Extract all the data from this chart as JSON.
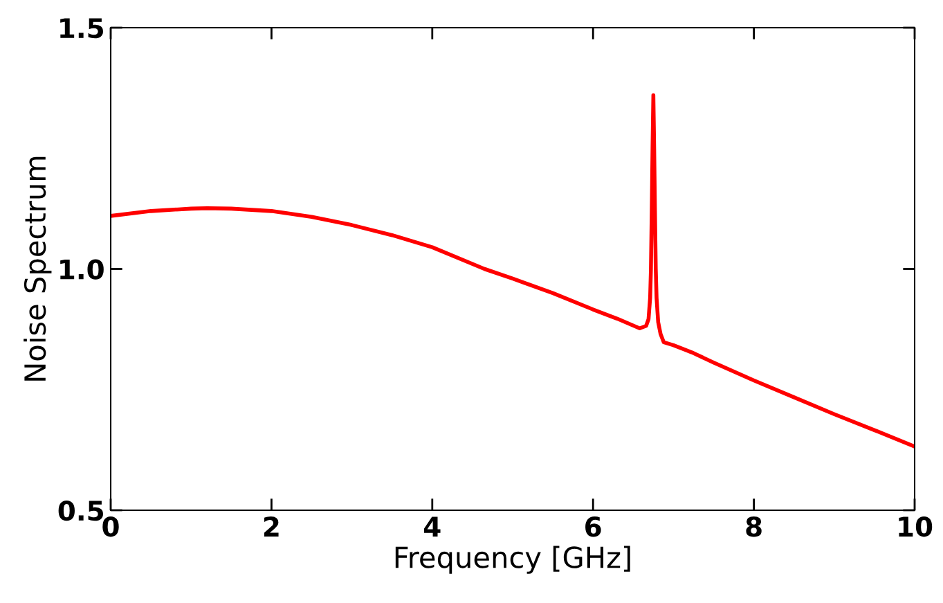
{
  "chart_data": {
    "type": "line",
    "xlabel": "Frequency [GHz]",
    "ylabel": "Noise Spectrum",
    "xlim": [
      0,
      10
    ],
    "ylim": [
      0.5,
      1.5
    ],
    "xticks": [
      0,
      2,
      4,
      6,
      8,
      10
    ],
    "yticks": [
      {
        "value": 0.5,
        "label": "0.5"
      },
      {
        "value": 1.0,
        "label": "1.0"
      },
      {
        "value": 1.5,
        "label": "1.5"
      }
    ],
    "grid": false,
    "legend": false,
    "marker": "none",
    "line_style": "solid",
    "series": [
      {
        "color": "#ff0000",
        "x": [
          0,
          0.5,
          1,
          1.2,
          1.5,
          2,
          2.5,
          3,
          3.5,
          4,
          4.65,
          5,
          5.5,
          6,
          6.3,
          6.58,
          6.66,
          6.69,
          6.71,
          6.72,
          6.73,
          6.74,
          6.75,
          6.76,
          6.77,
          6.78,
          6.79,
          6.81,
          6.84,
          6.88,
          7,
          7.23,
          7.5,
          8,
          8.5,
          9,
          9.5,
          10
        ],
        "values": [
          1.11,
          1.12,
          1.125,
          1.126,
          1.125,
          1.12,
          1.108,
          1.091,
          1.07,
          1.045,
          1.0,
          0.98,
          0.95,
          0.916,
          0.897,
          0.877,
          0.882,
          0.896,
          0.94,
          1.0,
          1.12,
          1.25,
          1.36,
          1.25,
          1.12,
          1.0,
          0.94,
          0.89,
          0.865,
          0.848,
          0.842,
          0.827,
          0.806,
          0.769,
          0.734,
          0.699,
          0.666,
          0.632
        ]
      }
    ]
  }
}
